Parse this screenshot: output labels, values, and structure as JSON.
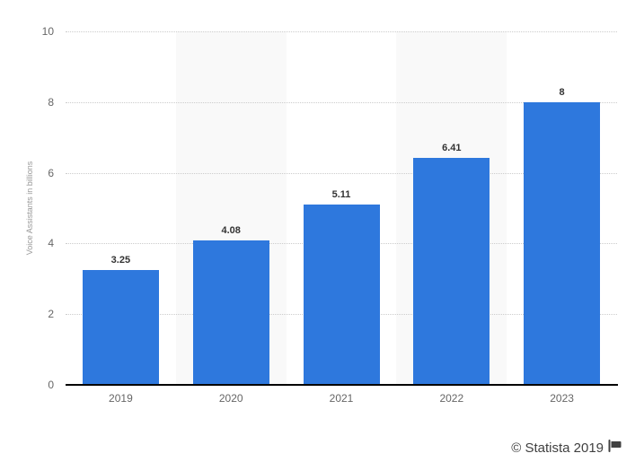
{
  "chart_data": {
    "type": "bar",
    "title": "",
    "xlabel": "",
    "ylabel": "Voice Assistants in billions",
    "categories": [
      "2019",
      "2020",
      "2021",
      "2022",
      "2023"
    ],
    "values": [
      3.25,
      4.08,
      5.11,
      6.41,
      8
    ],
    "value_labels": [
      "3.25",
      "4.08",
      "5.11",
      "6.41",
      "8"
    ],
    "ylim": [
      0,
      10
    ],
    "yticks": [
      0,
      2,
      4,
      6,
      8,
      10
    ],
    "grid": "horizontal-dotted",
    "legend": "none",
    "colors": {
      "bar": "#2e78dd",
      "band": "#f9f9f9",
      "gridline": "#cccccc",
      "axis_line": "#000000",
      "tick_label": "#666666",
      "value_label": "#333333",
      "ylabel": "#999999",
      "credit": "#404040"
    },
    "banded_columns": [
      1,
      3
    ]
  },
  "footer": {
    "credit": "© Statista 2019",
    "flag_icon": "flag-icon"
  }
}
